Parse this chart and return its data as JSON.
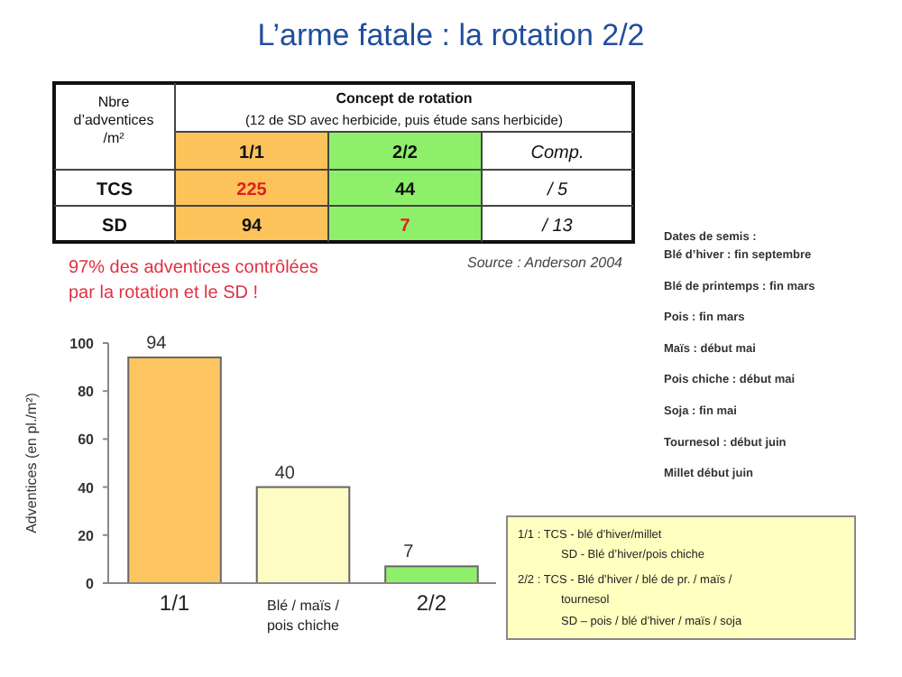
{
  "chart_data": {
    "type": "bar",
    "title": "L’arme fatale : la rotation 2/2",
    "categories": [
      "1/1",
      "Blé / maïs / pois chiche",
      "2/2"
    ],
    "values": [
      94,
      40,
      7
    ],
    "colors": [
      "#fdc55f",
      "#fffbc4",
      "#8ef06a"
    ],
    "ylim": [
      0,
      100
    ],
    "yticks": [
      0,
      20,
      40,
      60,
      80,
      100
    ],
    "ylabel": "Adventices (en pl./m²)",
    "data_labels": true,
    "annotations": [
      "Nbre",
      "d’adventices",
      "/m²",
      "Concept de rotation",
      "(12 de SD avec herbicide, puis étude sans herbicide)",
      "1/1",
      "2/2",
      "Comp.",
      "TCS",
      "225",
      "44",
      "/ 5",
      "SD",
      "94",
      "7",
      "/ 13",
      "97% des adventices contrôlées",
      "par la rotation et le SD !",
      "Source : Anderson 2004",
      "Dates de semis :",
      "Blé d’hiver : fin septembre",
      "Blé de printemps : fin mars",
      "Pois : fin mars",
      "Maïs : début mai",
      "Pois chiche : début mai",
      "Soja : fin mai",
      "Tournesol : début juin",
      "Millet début juin",
      "1/1 : TCS -  blé d’hiver/millet",
      "SD - Blé d’hiver/pois chiche",
      "2/2 : TCS - Blé d’hiver / blé de pr. / maïs /",
      "tournesol",
      "SD – pois / blé d’hiver / maïs / soja"
    ]
  }
}
